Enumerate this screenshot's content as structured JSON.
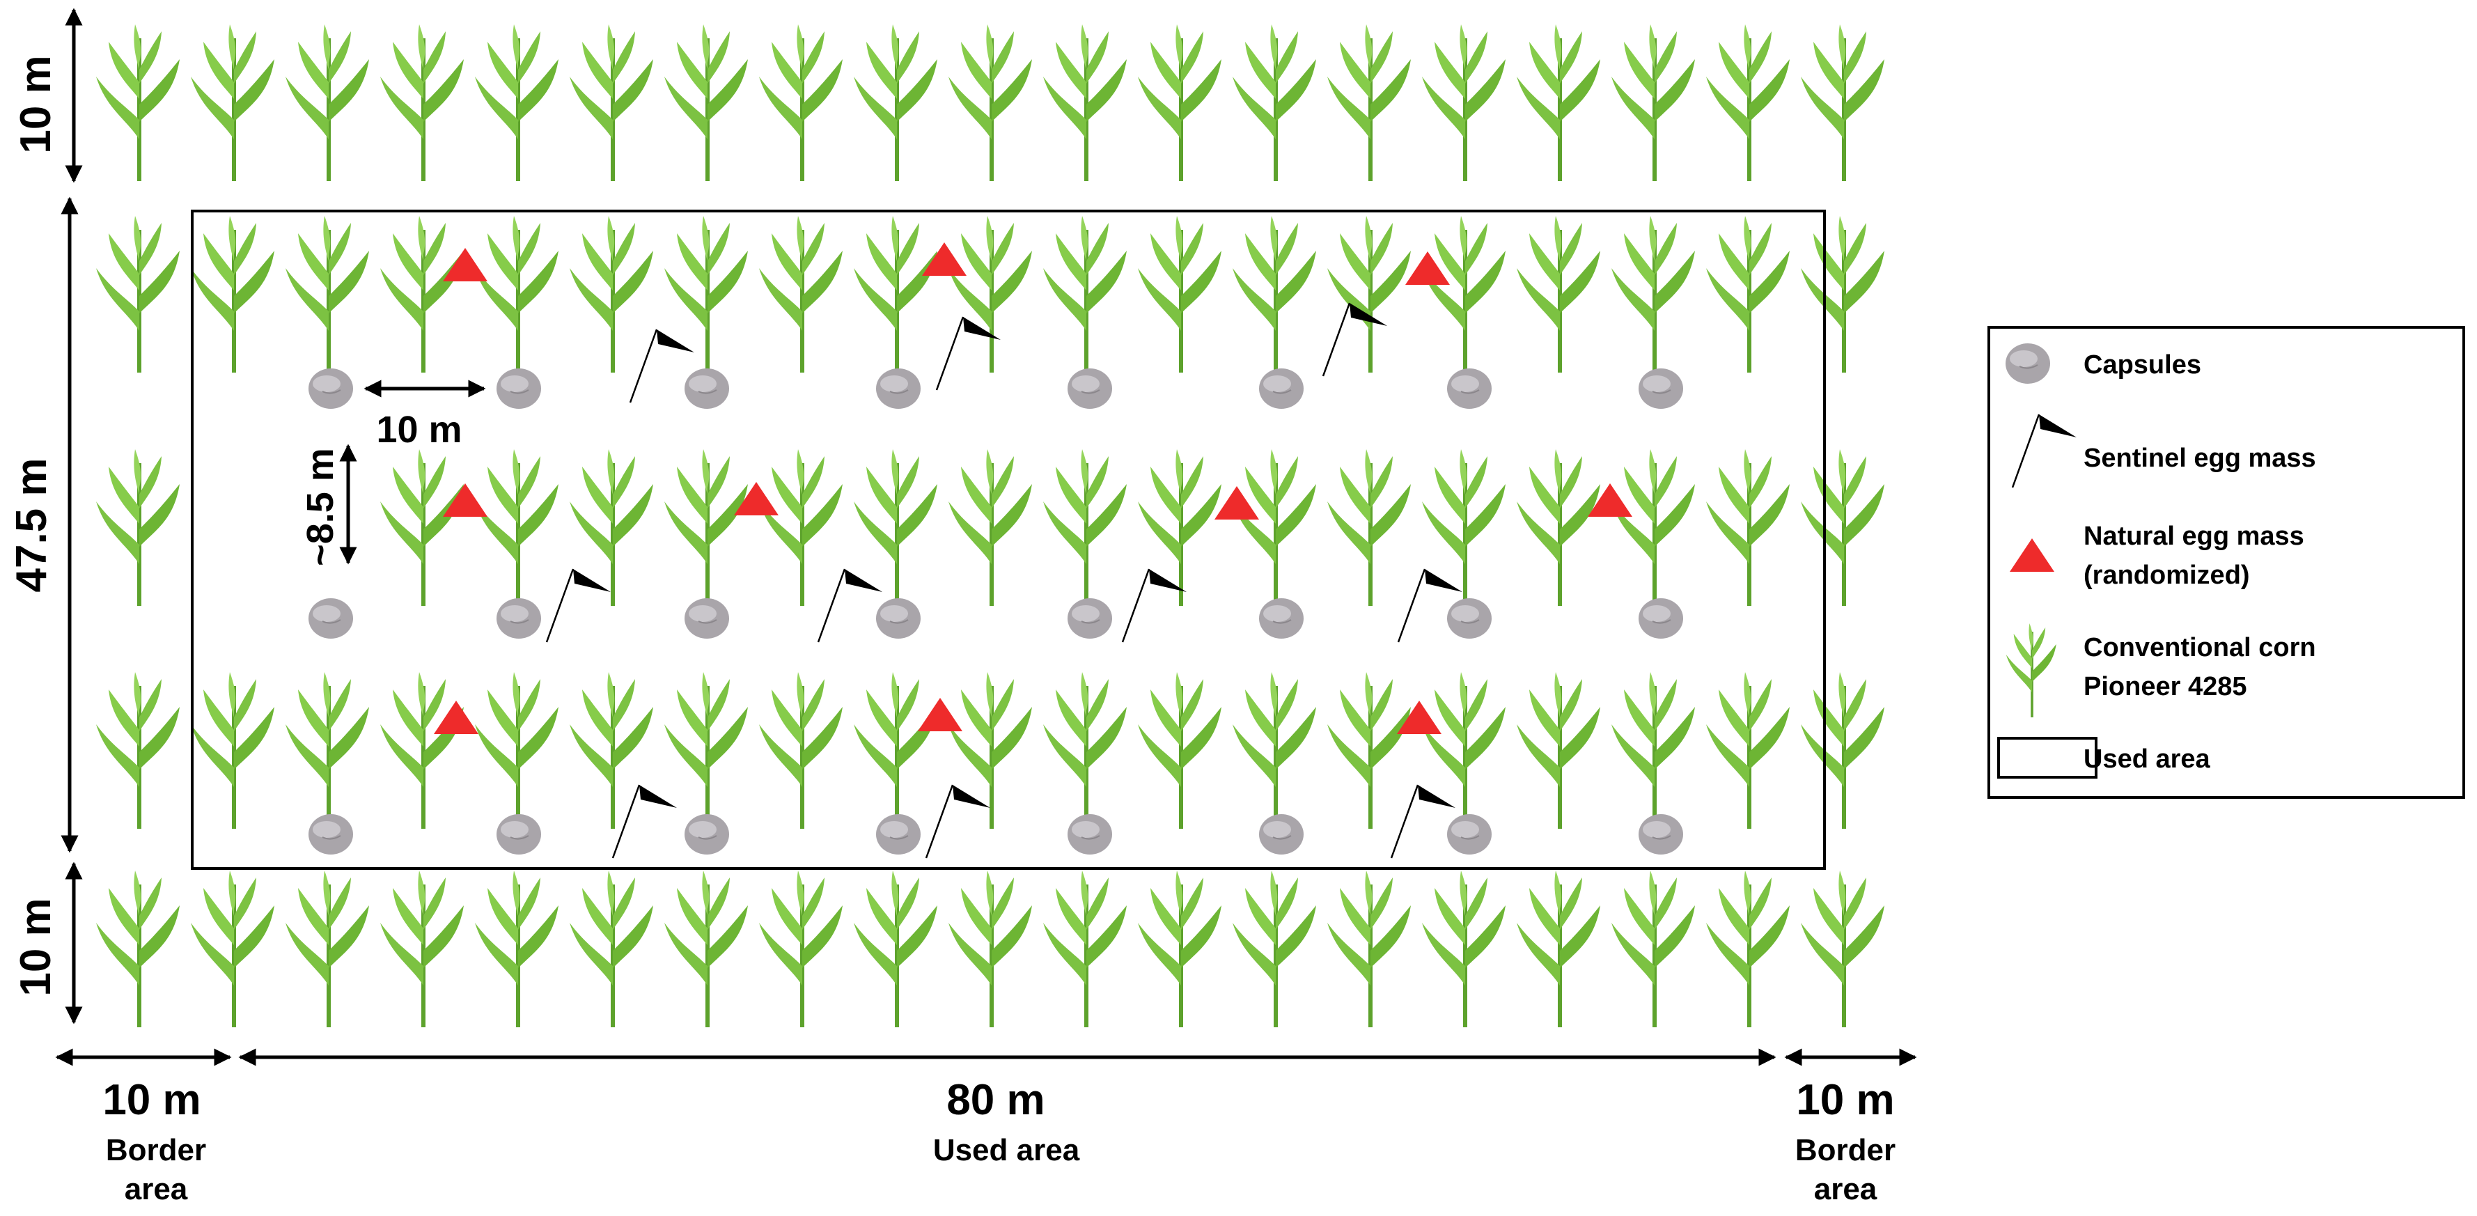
{
  "dimensions": {
    "top_border": "10 m",
    "bottom_border": "10 m",
    "used_height": "47.5 m",
    "left_border": "10 m",
    "left_border_caption_1": "Border",
    "left_border_caption_2": "area",
    "used_width": "80 m",
    "used_width_caption": "Used area",
    "right_border": "10 m",
    "right_border_caption_1": "Border",
    "right_border_caption_2": "area",
    "capsule_spacing": "10 m",
    "row_spacing": "~8.5 m"
  },
  "legend": {
    "capsules": "Capsules",
    "sentinel": "Sentinel egg mass",
    "natural_1": "Natural egg mass",
    "natural_2": "(randomized)",
    "corn_1": "Conventional corn",
    "corn_2": "Pioneer 4285",
    "used_area": "Used area"
  },
  "icons": {
    "capsule": "capsule-icon",
    "sentinel": "black-flag-icon",
    "natural": "red-triangle-icon",
    "corn": "corn-plant-icon"
  },
  "colors": {
    "corn_leaf": "#7cc242",
    "corn_leaf_dark": "#4e9a22",
    "capsule": "#a9a5aa",
    "natural_egg": "#ee2b2b",
    "sentinel_flag": "#000000"
  }
}
